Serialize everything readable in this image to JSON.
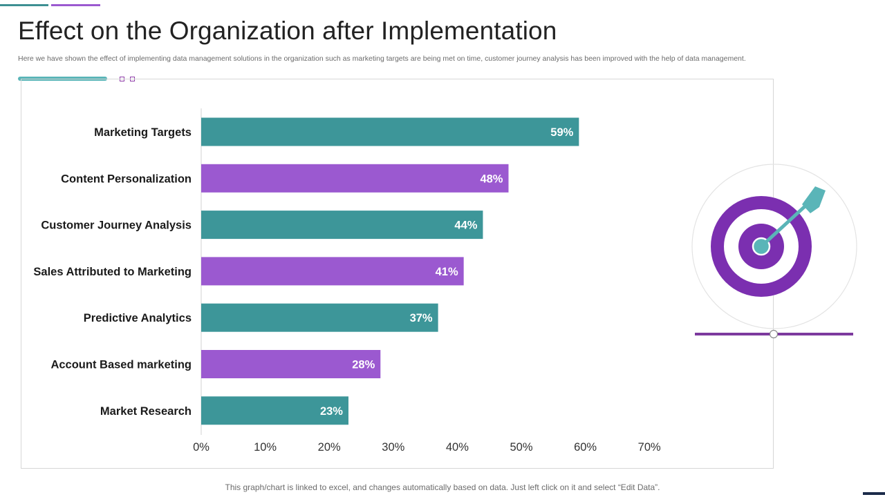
{
  "page": {
    "title": "Effect on the Organization after Implementation",
    "subtitle": "Here we have shown the effect of implementing data management solutions in the organization such as marketing targets are being met on time, customer journey analysis has been improved with the help of data management.",
    "footer": "This graph/chart is linked to excel, and changes automatically based on data. Just left click on it and select “Edit Data”."
  },
  "colors": {
    "teal": "#3d9699",
    "purple": "#9b59d0",
    "target_purple": "#7b2fb0",
    "arrow_teal": "#5ab5b8",
    "baseline_purple": "#7d3a9e"
  },
  "icons": {
    "illustration": "target-with-arrow-icon"
  },
  "chart_data": {
    "type": "bar",
    "orientation": "horizontal",
    "title": "",
    "xlabel": "",
    "ylabel": "",
    "categories": [
      "Marketing Targets",
      "Content Personalization",
      "Customer Journey Analysis",
      "Sales Attributed to Marketing",
      "Predictive Analytics",
      "Account Based marketing",
      "Market Research"
    ],
    "values": [
      59,
      48,
      44,
      41,
      37,
      28,
      23
    ],
    "value_labels": [
      "59%",
      "48%",
      "44%",
      "41%",
      "37%",
      "28%",
      "23%"
    ],
    "bar_colors": [
      "#3d9699",
      "#9b59d0",
      "#3d9699",
      "#9b59d0",
      "#3d9699",
      "#9b59d0",
      "#3d9699"
    ],
    "xlim": [
      0,
      70
    ],
    "xticks": [
      0,
      10,
      20,
      30,
      40,
      50,
      60,
      70
    ],
    "xtick_labels": [
      "0%",
      "10%",
      "20%",
      "30%",
      "40%",
      "50%",
      "60%",
      "70%"
    ],
    "grid": false,
    "legend": "none"
  }
}
